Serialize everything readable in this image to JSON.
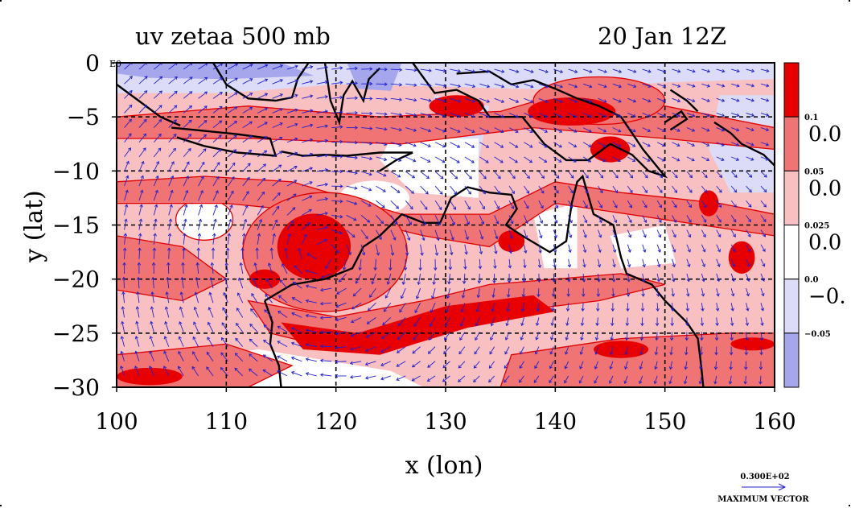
{
  "chart_data": {
    "type": "heatmap",
    "title_left": "uv zetaa 500 mb",
    "title_right": "20 Jan 12Z",
    "xlabel": "x (lon)",
    "ylabel": "y (lat)",
    "xlim": [
      100,
      160
    ],
    "ylim": [
      -30,
      0
    ],
    "x_ticks": [
      "100",
      "110",
      "120",
      "130",
      "140",
      "150",
      "160"
    ],
    "y_ticks": [
      "0",
      "−5",
      "−10",
      "−15",
      "−20",
      "−25",
      "−30"
    ],
    "y_top_extra_label": "E0",
    "grid": true,
    "colorbar": {
      "colors": [
        "#e80000",
        "#f07474",
        "#f8c0c0",
        "#ffffff",
        "#dcdcf8",
        "#a6a6ec"
      ],
      "small_labels": [
        "0.1",
        "0.05",
        "0.025",
        "0.0",
        "−0.05"
      ],
      "large_labels": [
        "0.0",
        "0.0",
        "0.0",
        "−0."
      ]
    },
    "vector_reference": {
      "value": "0.300E+02",
      "label": "MAXIMUM VECTOR"
    },
    "features": {
      "cyclone_center": [
        118.5,
        -17.5
      ],
      "vector_color": "#2020d0",
      "coast_color": "#000000",
      "contour_color": "#e00000"
    }
  }
}
